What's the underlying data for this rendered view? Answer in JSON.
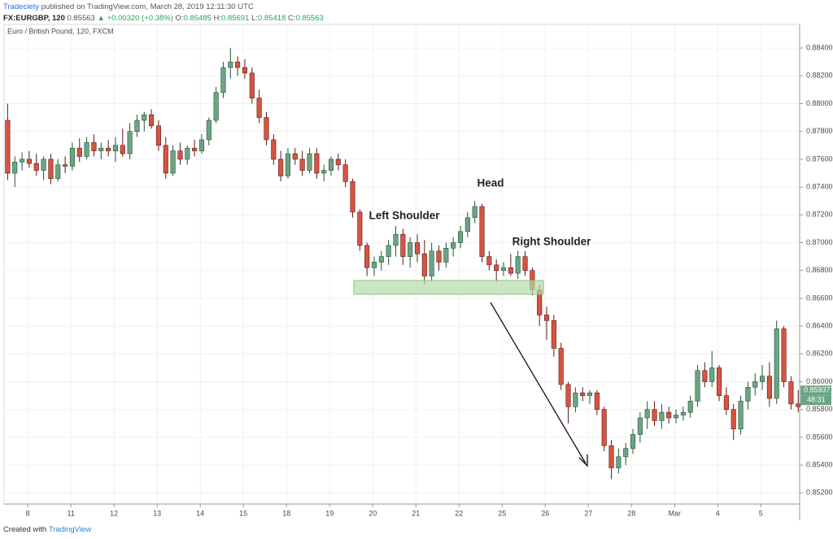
{
  "header": {
    "author": "Tradeciety",
    "published": "published on TradingView.com, March 28, 2019 12:11:30 UTC",
    "symbol": "FX:EURGBP, 120",
    "last": "0.85563",
    "change": "+0.00320 (+0.38%)",
    "open_label": "O:",
    "open": "0.85485",
    "high_label": "H:",
    "high": "0.85691",
    "low_label": "L:",
    "low": "0.85418",
    "close_label": "C:",
    "close": "0.85563"
  },
  "footer": {
    "created": "Created with",
    "brand": "TradingView"
  },
  "chart_data": {
    "type": "candlestick",
    "title": "Euro / British Pound, 120, FXCM",
    "annotations": [
      "Left Shoulder",
      "Head",
      "Right Shoulder"
    ],
    "up_color": "#6ba583",
    "up_border": "#225437",
    "down_color": "#d75442",
    "down_border": "#5b1a13",
    "grid": true,
    "last_price": 0.85937,
    "countdown": "48:31",
    "ylim": [
      0.8512,
      0.8857
    ],
    "yticks": [
      {
        "value": 0.852,
        "label": "0.85200"
      },
      {
        "value": 0.854,
        "label": "0.85400"
      },
      {
        "value": 0.856,
        "label": "0.85600"
      },
      {
        "value": 0.858,
        "label": "0.85800"
      },
      {
        "value": 0.86,
        "label": "0.86000"
      },
      {
        "value": 0.862,
        "label": "0.86200"
      },
      {
        "value": 0.864,
        "label": "0.86400"
      },
      {
        "value": 0.866,
        "label": "0.86600"
      },
      {
        "value": 0.868,
        "label": "0.86800"
      },
      {
        "value": 0.87,
        "label": "0.87000"
      },
      {
        "value": 0.872,
        "label": "0.87200"
      },
      {
        "value": 0.874,
        "label": "0.87400"
      },
      {
        "value": 0.876,
        "label": "0.87600"
      },
      {
        "value": 0.878,
        "label": "0.87800"
      },
      {
        "value": 0.88,
        "label": "0.88000"
      },
      {
        "value": 0.882,
        "label": "0.88200"
      },
      {
        "value": 0.884,
        "label": "0.88400"
      }
    ],
    "xlim": [
      0,
      110.7
    ],
    "xticks": [
      {
        "value": 3.3,
        "label": "8"
      },
      {
        "value": 9.3,
        "label": "11"
      },
      {
        "value": 15.3,
        "label": "12"
      },
      {
        "value": 21.3,
        "label": "13"
      },
      {
        "value": 27.3,
        "label": "14"
      },
      {
        "value": 33.3,
        "label": "15"
      },
      {
        "value": 39.3,
        "label": "18"
      },
      {
        "value": 45.3,
        "label": "19"
      },
      {
        "value": 51.3,
        "label": "20"
      },
      {
        "value": 57.3,
        "label": "21"
      },
      {
        "value": 63.3,
        "label": "22"
      },
      {
        "value": 69.3,
        "label": "25"
      },
      {
        "value": 75.3,
        "label": "26"
      },
      {
        "value": 81.3,
        "label": "27"
      },
      {
        "value": 87.3,
        "label": "28"
      },
      {
        "value": 93.3,
        "label": "Mar"
      },
      {
        "value": 99.3,
        "label": "4"
      },
      {
        "value": 105.3,
        "label": "5"
      }
    ],
    "x": [
      0.5,
      1.5,
      2.5,
      3.5,
      4.5,
      5.5,
      6.5,
      7.5,
      8.5,
      9.5,
      10.5,
      11.5,
      12.5,
      13.5,
      14.5,
      15.5,
      16.5,
      17.5,
      18.5,
      19.5,
      20.5,
      21.5,
      22.5,
      23.5,
      24.5,
      25.5,
      26.5,
      27.5,
      28.5,
      29.5,
      30.5,
      31.5,
      32.5,
      33.5,
      34.5,
      35.5,
      36.5,
      37.5,
      38.5,
      39.5,
      40.5,
      41.5,
      42.5,
      43.5,
      44.5,
      45.5,
      46.5,
      47.5,
      48.5,
      49.5,
      50.5,
      51.5,
      52.5,
      53.5,
      54.5,
      55.5,
      56.5,
      57.5,
      58.5,
      59.5,
      60.5,
      61.5,
      62.5,
      63.5,
      64.5,
      65.5,
      66.5,
      67.5,
      68.5,
      69.5,
      70.5,
      71.5,
      72.5,
      73.5,
      74.5,
      75.5,
      76.5,
      77.5,
      78.5,
      79.5,
      80.5,
      81.5,
      82.5,
      83.5,
      84.5,
      85.5,
      86.5,
      87.5,
      88.5,
      89.5,
      90.5,
      91.5,
      92.5,
      93.5,
      94.5,
      95.5,
      96.5,
      97.5,
      98.5,
      99.5,
      100.5,
      101.5,
      102.5,
      103.5,
      104.5,
      105.5,
      106.5,
      107.5,
      108.5,
      109.5,
      110.5
    ],
    "ohlc": [
      [
        0.8788,
        0.88,
        0.8745,
        0.875
      ],
      [
        0.875,
        0.8762,
        0.874,
        0.8758
      ],
      [
        0.8758,
        0.8765,
        0.8752,
        0.876
      ],
      [
        0.876,
        0.8766,
        0.8754,
        0.8757
      ],
      [
        0.8757,
        0.8764,
        0.8748,
        0.8752
      ],
      [
        0.8752,
        0.8762,
        0.8745,
        0.876
      ],
      [
        0.876,
        0.8764,
        0.8742,
        0.8746
      ],
      [
        0.8746,
        0.876,
        0.8744,
        0.8756
      ],
      [
        0.8756,
        0.8762,
        0.875,
        0.8755
      ],
      [
        0.8755,
        0.8772,
        0.8752,
        0.8768
      ],
      [
        0.8768,
        0.8775,
        0.8758,
        0.8762
      ],
      [
        0.8762,
        0.8776,
        0.876,
        0.8772
      ],
      [
        0.8772,
        0.8778,
        0.8762,
        0.8766
      ],
      [
        0.8766,
        0.8772,
        0.876,
        0.8768
      ],
      [
        0.8768,
        0.8774,
        0.8762,
        0.8766
      ],
      [
        0.8766,
        0.8776,
        0.8758,
        0.877
      ],
      [
        0.877,
        0.8782,
        0.8762,
        0.8764
      ],
      [
        0.8764,
        0.8786,
        0.876,
        0.878
      ],
      [
        0.878,
        0.8792,
        0.8776,
        0.8788
      ],
      [
        0.8788,
        0.8794,
        0.878,
        0.8792
      ],
      [
        0.8792,
        0.8796,
        0.8782,
        0.8784
      ],
      [
        0.8784,
        0.8788,
        0.8766,
        0.877
      ],
      [
        0.877,
        0.8776,
        0.8746,
        0.875
      ],
      [
        0.875,
        0.877,
        0.8748,
        0.8766
      ],
      [
        0.8766,
        0.8772,
        0.8756,
        0.876
      ],
      [
        0.876,
        0.877,
        0.8756,
        0.8768
      ],
      [
        0.8768,
        0.8774,
        0.8762,
        0.8766
      ],
      [
        0.8766,
        0.8778,
        0.8764,
        0.8774
      ],
      [
        0.8774,
        0.879,
        0.877,
        0.8788
      ],
      [
        0.8788,
        0.8812,
        0.8786,
        0.8808
      ],
      [
        0.8808,
        0.883,
        0.8804,
        0.8826
      ],
      [
        0.8826,
        0.884,
        0.8818,
        0.883
      ],
      [
        0.883,
        0.8834,
        0.882,
        0.8826
      ],
      [
        0.8826,
        0.8832,
        0.8818,
        0.8822
      ],
      [
        0.8822,
        0.8826,
        0.88,
        0.8804
      ],
      [
        0.8804,
        0.881,
        0.8786,
        0.879
      ],
      [
        0.879,
        0.8794,
        0.877,
        0.8774
      ],
      [
        0.8774,
        0.8778,
        0.8756,
        0.876
      ],
      [
        0.876,
        0.8766,
        0.8744,
        0.8748
      ],
      [
        0.8748,
        0.8768,
        0.8746,
        0.8764
      ],
      [
        0.8764,
        0.8768,
        0.8756,
        0.876
      ],
      [
        0.876,
        0.8766,
        0.8748,
        0.8752
      ],
      [
        0.8752,
        0.8768,
        0.875,
        0.8764
      ],
      [
        0.8764,
        0.8768,
        0.8746,
        0.875
      ],
      [
        0.875,
        0.8756,
        0.8744,
        0.8752
      ],
      [
        0.8752,
        0.8762,
        0.8748,
        0.876
      ],
      [
        0.876,
        0.8764,
        0.8752,
        0.8756
      ],
      [
        0.8756,
        0.876,
        0.874,
        0.8744
      ],
      [
        0.8744,
        0.8746,
        0.8718,
        0.8722
      ],
      [
        0.8722,
        0.8724,
        0.8694,
        0.8698
      ],
      [
        0.8698,
        0.87,
        0.8676,
        0.8682
      ],
      [
        0.8682,
        0.869,
        0.8676,
        0.8686
      ],
      [
        0.8686,
        0.8694,
        0.868,
        0.869
      ],
      [
        0.869,
        0.8702,
        0.8684,
        0.8698
      ],
      [
        0.8698,
        0.8712,
        0.869,
        0.8706
      ],
      [
        0.8706,
        0.871,
        0.8684,
        0.869
      ],
      [
        0.869,
        0.8704,
        0.8682,
        0.87
      ],
      [
        0.87,
        0.8706,
        0.8686,
        0.8692
      ],
      [
        0.8692,
        0.8702,
        0.867,
        0.8676
      ],
      [
        0.8676,
        0.87,
        0.8672,
        0.8694
      ],
      [
        0.8694,
        0.8698,
        0.868,
        0.8686
      ],
      [
        0.8686,
        0.87,
        0.8682,
        0.8696
      ],
      [
        0.8696,
        0.8704,
        0.869,
        0.87
      ],
      [
        0.87,
        0.8712,
        0.8696,
        0.8708
      ],
      [
        0.8708,
        0.8722,
        0.8704,
        0.8718
      ],
      [
        0.8718,
        0.873,
        0.8714,
        0.8726
      ],
      [
        0.8726,
        0.8728,
        0.8686,
        0.869
      ],
      [
        0.869,
        0.8694,
        0.868,
        0.8684
      ],
      [
        0.8684,
        0.8688,
        0.8672,
        0.868
      ],
      [
        0.868,
        0.8686,
        0.8676,
        0.8682
      ],
      [
        0.8682,
        0.8692,
        0.8676,
        0.8678
      ],
      [
        0.8678,
        0.8694,
        0.8674,
        0.869
      ],
      [
        0.869,
        0.8694,
        0.8676,
        0.868
      ],
      [
        0.868,
        0.8682,
        0.8662,
        0.8666
      ],
      [
        0.8666,
        0.867,
        0.864,
        0.8648
      ],
      [
        0.8648,
        0.8654,
        0.863,
        0.8644
      ],
      [
        0.8644,
        0.8648,
        0.8618,
        0.8624
      ],
      [
        0.8624,
        0.8628,
        0.8594,
        0.8598
      ],
      [
        0.8598,
        0.86,
        0.857,
        0.8582
      ],
      [
        0.8582,
        0.8596,
        0.8578,
        0.8592
      ],
      [
        0.8592,
        0.8596,
        0.8586,
        0.859
      ],
      [
        0.859,
        0.8594,
        0.8584,
        0.8592
      ],
      [
        0.8592,
        0.8594,
        0.8576,
        0.858
      ],
      [
        0.858,
        0.8582,
        0.855,
        0.8554
      ],
      [
        0.8554,
        0.8558,
        0.853,
        0.8538
      ],
      [
        0.8538,
        0.8552,
        0.8534,
        0.8546
      ],
      [
        0.8546,
        0.8556,
        0.854,
        0.8552
      ],
      [
        0.8552,
        0.8566,
        0.8548,
        0.8562
      ],
      [
        0.8562,
        0.8578,
        0.8556,
        0.8574
      ],
      [
        0.8574,
        0.8586,
        0.8566,
        0.858
      ],
      [
        0.858,
        0.8586,
        0.8568,
        0.8572
      ],
      [
        0.8572,
        0.8584,
        0.8566,
        0.8578
      ],
      [
        0.8578,
        0.8582,
        0.857,
        0.8574
      ],
      [
        0.8574,
        0.858,
        0.857,
        0.8576
      ],
      [
        0.8576,
        0.8582,
        0.8572,
        0.8578
      ],
      [
        0.8578,
        0.859,
        0.8574,
        0.8586
      ],
      [
        0.8586,
        0.8612,
        0.8582,
        0.8608
      ],
      [
        0.8608,
        0.8614,
        0.8596,
        0.86
      ],
      [
        0.86,
        0.8622,
        0.8596,
        0.861
      ],
      [
        0.861,
        0.8612,
        0.8586,
        0.859
      ],
      [
        0.859,
        0.8596,
        0.8576,
        0.858
      ],
      [
        0.858,
        0.8584,
        0.8558,
        0.8566
      ],
      [
        0.8566,
        0.859,
        0.8562,
        0.8586
      ],
      [
        0.8586,
        0.86,
        0.858,
        0.8596
      ],
      [
        0.8596,
        0.8606,
        0.859,
        0.86
      ],
      [
        0.86,
        0.8612,
        0.8594,
        0.8604
      ],
      [
        0.8604,
        0.8614,
        0.8582,
        0.8588
      ],
      [
        0.8588,
        0.8644,
        0.8584,
        0.8638
      ],
      [
        0.8638,
        0.864,
        0.8596,
        0.86
      ],
      [
        0.86,
        0.8604,
        0.858,
        0.8584
      ],
      [
        0.8584,
        0.8594,
        0.8578,
        0.8582
      ]
    ]
  }
}
